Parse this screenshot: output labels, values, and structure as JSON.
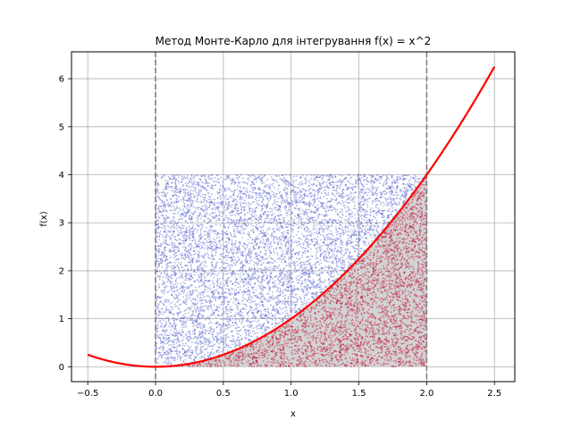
{
  "chart_data": {
    "type": "scatter",
    "title": "Метод Монте-Карло для інтегрування f(x) = x^2",
    "xlabel": "x",
    "ylabel": "f(x)",
    "xlim": [
      -0.62,
      2.65
    ],
    "ylim": [
      -0.31,
      6.56
    ],
    "x_ticks": [
      -0.5,
      0.0,
      0.5,
      1.0,
      1.5,
      2.0,
      2.5
    ],
    "x_tick_labels": [
      "−0.5",
      "0.0",
      "0.5",
      "1.0",
      "1.5",
      "2.0",
      "2.5"
    ],
    "y_ticks": [
      0,
      1,
      2,
      3,
      4,
      5,
      6
    ],
    "y_tick_labels": [
      "0",
      "1",
      "2",
      "3",
      "4",
      "5",
      "6"
    ],
    "grid": true,
    "curve": {
      "function": "x^2",
      "x_range": [
        -0.5,
        2.5
      ],
      "color": "#ff0000"
    },
    "integration_bounds": [
      0,
      2
    ],
    "bound_line_color": "#808080",
    "sampling_box": {
      "x": [
        0,
        2
      ],
      "y": [
        0,
        4
      ]
    },
    "fill_under_curve_color": "#d3d3d3",
    "points": {
      "count": 10000,
      "below_color": "#c0002e",
      "above_color": "#4a5cc8"
    }
  }
}
